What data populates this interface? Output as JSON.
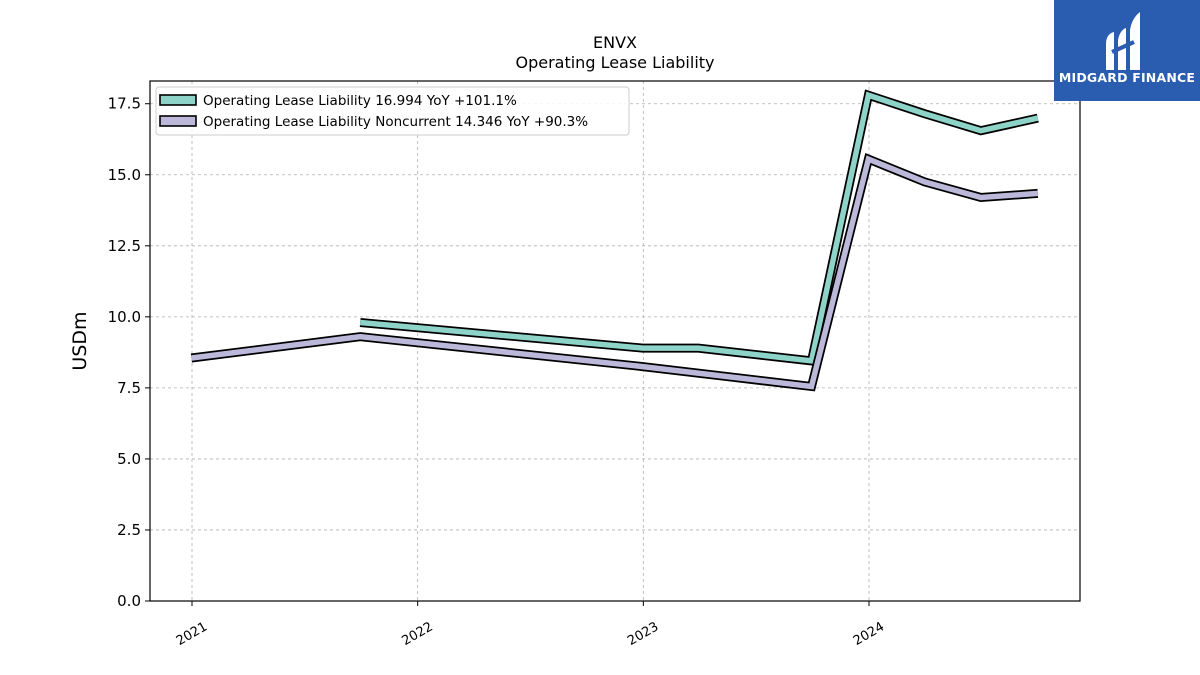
{
  "header": {
    "ticker": "ENVX",
    "subtitle": "Operating Lease Liability"
  },
  "brand": {
    "name": "MIDGARD FINANCE",
    "color": "#2a5db0"
  },
  "chart_data": {
    "type": "line",
    "title": "ENVX",
    "subtitle": "Operating Lease Liability",
    "xlabel": "",
    "ylabel": "USDm",
    "ylim": [
      0,
      18.3
    ],
    "yticks": [
      "0.0",
      "2.5",
      "5.0",
      "7.5",
      "10.0",
      "12.5",
      "15.0",
      "17.5"
    ],
    "xticks": [
      "2021",
      "2022",
      "2023",
      "2024"
    ],
    "grid": true,
    "legend_position": "top-left",
    "series": [
      {
        "name": "Operating Lease Liability",
        "legend_label": "Operating Lease Liability  16.994 YoY +101.1%",
        "color": "#8dd3c7",
        "points": [
          [
            "2021-09-30",
            9.8
          ],
          [
            "2022-12-31",
            8.9
          ],
          [
            "2023-03-31",
            8.9
          ],
          [
            "2023-09-30",
            8.45
          ],
          [
            "2023-12-31",
            17.8
          ],
          [
            "2024-03-31",
            17.15
          ],
          [
            "2024-06-30",
            16.55
          ],
          [
            "2024-09-30",
            16.994
          ]
        ]
      },
      {
        "name": "Operating Lease Liability Noncurrent",
        "legend_label": "Operating Lease Liability Noncurrent  14.346 YoY +90.3%",
        "color": "#bcb8d9",
        "points": [
          [
            "2020-12-31",
            8.55
          ],
          [
            "2021-09-30",
            9.3
          ],
          [
            "2022-12-31",
            8.25
          ],
          [
            "2023-09-30",
            7.55
          ],
          [
            "2023-12-31",
            15.55
          ],
          [
            "2024-03-31",
            14.75
          ],
          [
            "2024-06-30",
            14.2
          ],
          [
            "2024-09-30",
            14.346
          ]
        ]
      }
    ]
  }
}
